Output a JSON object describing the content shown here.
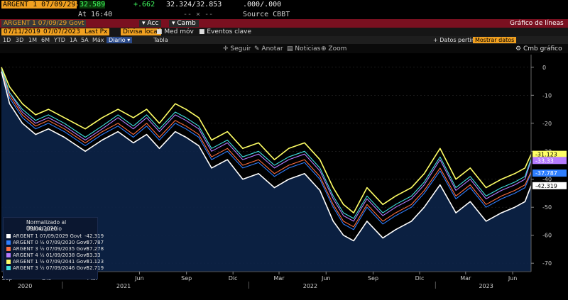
{
  "header": {
    "ticker": "ARGENT 1 07/09/29",
    "price": "32.589",
    "change": "+.662",
    "bid_ask": "32.324/32.853",
    "size": ".000/.000",
    "time_label": "At 16:40",
    "source": "Source CBBT",
    "dash": "-- × --"
  },
  "toolbar": {
    "security_field": "ARGENT 1 07/09/29 Govt",
    "actions_menu": "Acc",
    "change_menu": "Camb",
    "chart_title": "Gráfico de líneas",
    "start_date": "07/11/2019",
    "end_date": "07/07/2023",
    "field_label": "Last Px",
    "field2_label": "Divisa local",
    "med_mov": "Med móv",
    "eventos": "Eventos clave"
  },
  "periods": [
    "1D",
    "3D",
    "1M",
    "6M",
    "YTD",
    "1A",
    "5A",
    "Máx"
  ],
  "frequency": "Diario",
  "tabla": "Tabla",
  "datos_pertinent": "Datos pertinent",
  "mostrar_datos": "Mostrar datos",
  "cmb_grafico": "Cmb gráfico",
  "chart_tools": [
    "Seguir",
    "Anotar",
    "Noticias",
    "Zoom"
  ],
  "legend": {
    "title": "Normalizado al 09/04/2020",
    "subtitle": "Último precio",
    "items": [
      {
        "label": "ARGENT 1 07/09/2029 Govt",
        "value": "-42.319",
        "color": "#ffffff"
      },
      {
        "label": "ARGENT 0 ½ 07/09/2030 Govt",
        "value": "-37.787",
        "color": "#2f7fff"
      },
      {
        "label": "ARGENT 3 ½ 07/09/2035 Govt",
        "value": "-37.278",
        "color": "#ff6f40"
      },
      {
        "label": "ARGENT 4 ½ 01/09/2038 Govt",
        "value": "-33.33",
        "color": "#b57cff"
      },
      {
        "label": "ARGENT 1 ½ 07/09/2041 Govt",
        "value": "-31.123",
        "color": "#ffff66"
      },
      {
        "label": "ARGENT 3 ½ 07/09/2046 Govt",
        "value": "-32.719",
        "color": "#40e0e0"
      }
    ]
  },
  "chart_data": {
    "type": "line",
    "y_ticks": [
      0,
      -10,
      -20,
      -30,
      -40,
      -50,
      -60,
      -70
    ],
    "ylim": [
      -73,
      3
    ],
    "x_month_ticks": [
      "Sep",
      "Dic",
      "Mar",
      "Jun",
      "Sep",
      "Dic",
      "Mar",
      "Jun",
      "Sep",
      "Dic",
      "Mar",
      "Jun"
    ],
    "x_year_ticks": [
      "2020",
      "2021",
      "2022",
      "2023"
    ],
    "date_range": [
      "2020-09-04",
      "2023-07-07"
    ],
    "series": [
      {
        "name": "ARGENT 1 07/09/2029 Govt",
        "color": "#ffffff",
        "dates": [
          "2020-09-04",
          "2020-09-20",
          "2020-10-15",
          "2020-11-10",
          "2020-12-05",
          "2021-01-05",
          "2021-02-15",
          "2021-03-20",
          "2021-04-20",
          "2021-05-20",
          "2021-06-15",
          "2021-07-10",
          "2021-08-10",
          "2021-08-31",
          "2021-09-25",
          "2021-10-20",
          "2021-11-20",
          "2021-12-20",
          "2022-01-20",
          "2022-02-20",
          "2022-03-20",
          "2022-04-20",
          "2022-05-20",
          "2022-06-15",
          "2022-07-05",
          "2022-07-25",
          "2022-08-20",
          "2022-09-20",
          "2022-10-15",
          "2022-11-15",
          "2022-12-10",
          "2023-01-10",
          "2023-02-10",
          "2023-03-10",
          "2023-04-10",
          "2023-05-10",
          "2023-06-05",
          "2023-06-25",
          "2023-07-07"
        ],
        "values": [
          -1.5,
          -13,
          -20,
          -24,
          -22,
          -25,
          -30,
          -26,
          -23,
          -27,
          -24,
          -29,
          -23,
          -25,
          -28,
          -36,
          -33,
          -40,
          -38,
          -43,
          -40,
          -38,
          -44,
          -55,
          -60,
          -62,
          -55,
          -61,
          -58,
          -55,
          -50,
          -42,
          -52,
          -48,
          -55,
          -52,
          -50,
          -48,
          -42.3
        ]
      },
      {
        "name": "ARGENT 0 ½ 07/09/2030 Govt",
        "color": "#2f7fff",
        "dates": [
          "2020-09-04",
          "2020-09-20",
          "2020-10-15",
          "2020-11-10",
          "2020-12-05",
          "2021-01-05",
          "2021-02-15",
          "2021-03-20",
          "2021-04-20",
          "2021-05-20",
          "2021-06-15",
          "2021-07-10",
          "2021-08-10",
          "2021-08-31",
          "2021-09-25",
          "2021-10-20",
          "2021-11-20",
          "2021-12-20",
          "2022-01-20",
          "2022-02-20",
          "2022-03-20",
          "2022-04-20",
          "2022-05-20",
          "2022-06-15",
          "2022-07-05",
          "2022-07-25",
          "2022-08-20",
          "2022-09-20",
          "2022-10-15",
          "2022-11-15",
          "2022-12-10",
          "2023-01-10",
          "2023-02-10",
          "2023-03-10",
          "2023-04-10",
          "2023-05-10",
          "2023-06-05",
          "2023-06-25",
          "2023-07-07"
        ],
        "values": [
          -1,
          -11,
          -18,
          -22,
          -20,
          -23,
          -28,
          -24,
          -21,
          -25,
          -21,
          -26,
          -20,
          -22,
          -25,
          -33,
          -30,
          -36,
          -34,
          -39,
          -36,
          -34,
          -40,
          -50,
          -56,
          -58,
          -50,
          -56,
          -53,
          -50,
          -45,
          -37,
          -47,
          -43,
          -50,
          -47,
          -45,
          -43,
          -37.8
        ]
      },
      {
        "name": "ARGENT 3 ½ 07/09/2035 Govt",
        "color": "#ff6f40",
        "dates": [
          "2020-09-04",
          "2020-09-20",
          "2020-10-15",
          "2020-11-10",
          "2020-12-05",
          "2021-01-05",
          "2021-02-15",
          "2021-03-20",
          "2021-04-20",
          "2021-05-20",
          "2021-06-15",
          "2021-07-10",
          "2021-08-10",
          "2021-08-31",
          "2021-09-25",
          "2021-10-20",
          "2021-11-20",
          "2021-12-20",
          "2022-01-20",
          "2022-02-20",
          "2022-03-20",
          "2022-04-20",
          "2022-05-20",
          "2022-06-15",
          "2022-07-05",
          "2022-07-25",
          "2022-08-20",
          "2022-09-20",
          "2022-10-15",
          "2022-11-15",
          "2022-12-10",
          "2023-01-10",
          "2023-02-10",
          "2023-03-10",
          "2023-04-10",
          "2023-05-10",
          "2023-06-05",
          "2023-06-25",
          "2023-07-07"
        ],
        "values": [
          -1,
          -10,
          -17,
          -21,
          -19,
          -22,
          -27,
          -23,
          -20,
          -24,
          -20,
          -25,
          -19,
          -21,
          -24,
          -32,
          -29,
          -35,
          -33,
          -38,
          -35,
          -33,
          -39,
          -49,
          -55,
          -57,
          -49,
          -55,
          -52,
          -49,
          -44,
          -36,
          -46,
          -42,
          -49,
          -46,
          -44,
          -42,
          -37.3
        ]
      },
      {
        "name": "ARGENT 4 ½ 01/09/2038 Govt",
        "color": "#b57cff",
        "dates": [
          "2020-09-04",
          "2020-09-20",
          "2020-10-15",
          "2020-11-10",
          "2020-12-05",
          "2021-01-05",
          "2021-02-15",
          "2021-03-20",
          "2021-04-20",
          "2021-05-20",
          "2021-06-15",
          "2021-07-10",
          "2021-08-10",
          "2021-08-31",
          "2021-09-25",
          "2021-10-20",
          "2021-11-20",
          "2021-12-20",
          "2022-01-20",
          "2022-02-20",
          "2022-03-20",
          "2022-04-20",
          "2022-05-20",
          "2022-06-15",
          "2022-07-05",
          "2022-07-25",
          "2022-08-20",
          "2022-09-20",
          "2022-10-15",
          "2022-11-15",
          "2022-12-10",
          "2023-01-10",
          "2023-02-10",
          "2023-03-10",
          "2023-04-10",
          "2023-05-10",
          "2023-06-05",
          "2023-06-25",
          "2023-07-07"
        ],
        "values": [
          -0.5,
          -9,
          -16,
          -20,
          -18,
          -21,
          -26,
          -22,
          -18,
          -22,
          -18,
          -23,
          -17,
          -19,
          -22,
          -30,
          -27,
          -33,
          -31,
          -36,
          -33,
          -31,
          -37,
          -47,
          -53,
          -55,
          -47,
          -53,
          -50,
          -47,
          -42,
          -33,
          -44,
          -40,
          -47,
          -44,
          -42,
          -40,
          -33.3
        ]
      },
      {
        "name": "ARGENT 1 ½ 07/09/2041 Govt",
        "color": "#ffff66",
        "dates": [
          "2020-09-04",
          "2020-09-20",
          "2020-10-15",
          "2020-11-10",
          "2020-12-05",
          "2021-01-05",
          "2021-02-15",
          "2021-03-20",
          "2021-04-20",
          "2021-05-20",
          "2021-06-15",
          "2021-07-10",
          "2021-08-10",
          "2021-08-31",
          "2021-09-25",
          "2021-10-20",
          "2021-11-20",
          "2021-12-20",
          "2022-01-20",
          "2022-02-20",
          "2022-03-20",
          "2022-04-20",
          "2022-05-20",
          "2022-06-15",
          "2022-07-05",
          "2022-07-25",
          "2022-08-20",
          "2022-09-20",
          "2022-10-15",
          "2022-11-15",
          "2022-12-10",
          "2023-01-10",
          "2023-02-10",
          "2023-03-10",
          "2023-04-10",
          "2023-05-10",
          "2023-06-05",
          "2023-06-25",
          "2023-07-07"
        ],
        "values": [
          0,
          -7,
          -13,
          -17,
          -15,
          -18,
          -22,
          -18,
          -15,
          -18,
          -15,
          -20,
          -13,
          -15,
          -18,
          -26,
          -23,
          -29,
          -27,
          -33,
          -29,
          -27,
          -33,
          -43,
          -49,
          -52,
          -43,
          -49,
          -46,
          -43,
          -38,
          -29,
          -40,
          -36,
          -43,
          -40,
          -38,
          -36,
          -31.1
        ]
      },
      {
        "name": "ARGENT 3 ½ 07/09/2046 Govt",
        "color": "#40e0e0",
        "dates": [
          "2020-09-04",
          "2020-09-20",
          "2020-10-15",
          "2020-11-10",
          "2020-12-05",
          "2021-01-05",
          "2021-02-15",
          "2021-03-20",
          "2021-04-20",
          "2021-05-20",
          "2021-06-15",
          "2021-07-10",
          "2021-08-10",
          "2021-08-31",
          "2021-09-25",
          "2021-10-20",
          "2021-11-20",
          "2021-12-20",
          "2022-01-20",
          "2022-02-20",
          "2022-03-20",
          "2022-04-20",
          "2022-05-20",
          "2022-06-15",
          "2022-07-05",
          "2022-07-25",
          "2022-08-20",
          "2022-09-20",
          "2022-10-15",
          "2022-11-15",
          "2022-12-10",
          "2023-01-10",
          "2023-02-10",
          "2023-03-10",
          "2023-04-10",
          "2023-05-10",
          "2023-06-05",
          "2023-06-25",
          "2023-07-07"
        ],
        "values": [
          -0.5,
          -9,
          -15,
          -19,
          -17,
          -20,
          -25,
          -21,
          -17,
          -21,
          -17,
          -22,
          -16,
          -18,
          -21,
          -29,
          -26,
          -32,
          -30,
          -35,
          -32,
          -30,
          -36,
          -46,
          -52,
          -54,
          -46,
          -52,
          -49,
          -46,
          -41,
          -32,
          -43,
          -39,
          -46,
          -43,
          -41,
          -39,
          -32.7
        ]
      }
    ],
    "last_value_labels": [
      "-31.123",
      "-33.33",
      "-37.787",
      "-42.319"
    ]
  }
}
